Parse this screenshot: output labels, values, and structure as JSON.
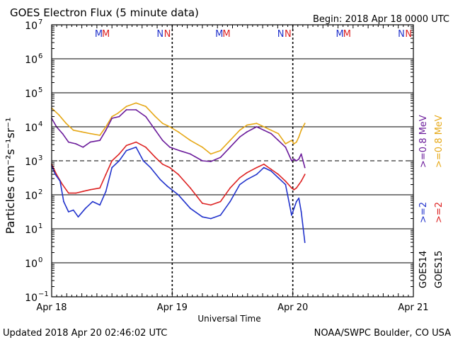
{
  "chart_data": {
    "type": "line",
    "title": "GOES Electron Flux (5 minute data)",
    "begin_label": "Begin: 2018 Apr 18 0000 UTC",
    "xlabel": "Universal Time",
    "ylabel": "Particles cm⁻²s⁻¹sr⁻¹",
    "footer_left": "Updated 2018 Apr 20 02:46:02 UTC",
    "footer_right": "NOAA/SWPC Boulder, CO USA",
    "x_unit": "days since 2018 Apr 18 0000 UTC",
    "xlim": [
      0,
      3
    ],
    "x_ticks": [
      {
        "x": 0,
        "label": "Apr 18"
      },
      {
        "x": 1,
        "label": "Apr 19"
      },
      {
        "x": 2,
        "label": "Apr 20"
      },
      {
        "x": 3,
        "label": "Apr 21"
      }
    ],
    "y_scale": "log",
    "ylim_exponent": [
      -1,
      7
    ],
    "y_ticks": [
      {
        "exp": 7,
        "base": "10",
        "sup": "7"
      },
      {
        "exp": 6,
        "base": "10",
        "sup": "6"
      },
      {
        "exp": 5,
        "base": "10",
        "sup": "5"
      },
      {
        "exp": 4,
        "base": "10",
        "sup": "4"
      },
      {
        "exp": 3,
        "base": "10",
        "sup": "3"
      },
      {
        "exp": 2,
        "base": "10",
        "sup": "2"
      },
      {
        "exp": 1,
        "base": "10",
        "sup": "1"
      },
      {
        "exp": 0,
        "base": "10",
        "sup": "0"
      },
      {
        "exp": -1,
        "base": "10",
        "sup": "-1"
      }
    ],
    "threshold_exponent": 3,
    "day_separators": [
      1,
      2
    ],
    "markers": [
      {
        "x": 0.39,
        "text": "M",
        "color": "#2233cc"
      },
      {
        "x": 0.45,
        "text": "M",
        "color": "#dd2222"
      },
      {
        "x": 0.9,
        "text": "N",
        "color": "#2233cc"
      },
      {
        "x": 0.96,
        "text": "N",
        "color": "#dd2222"
      },
      {
        "x": 1.39,
        "text": "M",
        "color": "#2233cc"
      },
      {
        "x": 1.45,
        "text": "M",
        "color": "#dd2222"
      },
      {
        "x": 1.9,
        "text": "N",
        "color": "#2233cc"
      },
      {
        "x": 1.96,
        "text": "N",
        "color": "#dd2222"
      },
      {
        "x": 2.39,
        "text": "M",
        "color": "#2233cc"
      },
      {
        "x": 2.45,
        "text": "M",
        "color": "#dd2222"
      },
      {
        "x": 2.9,
        "text": "N",
        "color": "#2233cc"
      },
      {
        "x": 2.96,
        "text": "N",
        "color": "#dd2222"
      }
    ],
    "legend": [
      {
        "group": "GOES14",
        "items": [
          {
            "label": ">=2",
            "color": "#2233cc"
          },
          {
            "label": ">=0.8 MeV",
            "color": "#6a1a9a"
          }
        ]
      },
      {
        "group": "GOES15",
        "items": [
          {
            "label": ">=2",
            "color": "#dd2222"
          },
          {
            "label": ">=0.8 MeV",
            "color": "#e6a817"
          }
        ]
      }
    ],
    "series": [
      {
        "name": "GOES15 >=0.8 MeV",
        "color": "#e6a817",
        "x": [
          0,
          0.06,
          0.12,
          0.18,
          0.25,
          0.32,
          0.4,
          0.45,
          0.5,
          0.55,
          0.62,
          0.7,
          0.78,
          0.86,
          0.92,
          0.98,
          1.05,
          1.15,
          1.25,
          1.32,
          1.4,
          1.48,
          1.56,
          1.62,
          1.7,
          1.76,
          1.82,
          1.88,
          1.94,
          1.99,
          2.01,
          2.03,
          2.05,
          2.07,
          2.1
        ],
        "exp": [
          4.55,
          4.35,
          4.1,
          3.9,
          3.85,
          3.8,
          3.75,
          4.0,
          4.3,
          4.4,
          4.6,
          4.7,
          4.6,
          4.3,
          4.1,
          4.0,
          3.85,
          3.6,
          3.4,
          3.2,
          3.3,
          3.6,
          3.9,
          4.05,
          4.1,
          4.0,
          3.9,
          3.8,
          3.5,
          3.6,
          3.5,
          3.55,
          3.7,
          3.9,
          4.1
        ]
      },
      {
        "name": "GOES14 >=0.8 MeV",
        "color": "#6a1a9a",
        "x": [
          0,
          0.04,
          0.09,
          0.14,
          0.2,
          0.26,
          0.32,
          0.4,
          0.45,
          0.5,
          0.56,
          0.62,
          0.7,
          0.78,
          0.86,
          0.92,
          0.98,
          1.06,
          1.15,
          1.25,
          1.32,
          1.4,
          1.48,
          1.56,
          1.62,
          1.7,
          1.76,
          1.82,
          1.88,
          1.94,
          1.99,
          2.01,
          2.03,
          2.05,
          2.07,
          2.1
        ],
        "exp": [
          4.25,
          4.0,
          3.8,
          3.55,
          3.5,
          3.4,
          3.55,
          3.6,
          3.9,
          4.25,
          4.3,
          4.5,
          4.5,
          4.3,
          3.9,
          3.6,
          3.4,
          3.3,
          3.2,
          3.0,
          2.98,
          3.1,
          3.4,
          3.7,
          3.85,
          4.0,
          3.9,
          3.8,
          3.6,
          3.4,
          3.0,
          3.05,
          3.0,
          3.05,
          3.2,
          2.8
        ]
      },
      {
        "name": "GOES15 >=2 MeV",
        "color": "#dd2222",
        "x": [
          0,
          0.04,
          0.09,
          0.14,
          0.2,
          0.26,
          0.32,
          0.4,
          0.45,
          0.5,
          0.56,
          0.62,
          0.7,
          0.78,
          0.86,
          0.92,
          0.98,
          1.05,
          1.15,
          1.25,
          1.32,
          1.4,
          1.48,
          1.56,
          1.62,
          1.7,
          1.76,
          1.82,
          1.88,
          1.94,
          1.99,
          2.01,
          2.03,
          2.05,
          2.07,
          2.1
        ],
        "exp": [
          2.9,
          2.6,
          2.3,
          2.05,
          2.05,
          2.1,
          2.15,
          2.2,
          2.6,
          3.0,
          3.2,
          3.45,
          3.55,
          3.4,
          3.1,
          2.9,
          2.8,
          2.6,
          2.2,
          1.75,
          1.7,
          1.8,
          2.2,
          2.5,
          2.65,
          2.8,
          2.9,
          2.75,
          2.6,
          2.4,
          2.2,
          2.15,
          2.2,
          2.3,
          2.4,
          2.6
        ]
      },
      {
        "name": "GOES14 >=2 MeV",
        "color": "#2233cc",
        "x": [
          0,
          0.03,
          0.07,
          0.1,
          0.14,
          0.18,
          0.22,
          0.28,
          0.34,
          0.4,
          0.45,
          0.5,
          0.56,
          0.62,
          0.7,
          0.76,
          0.82,
          0.9,
          0.96,
          1.05,
          1.15,
          1.25,
          1.32,
          1.4,
          1.48,
          1.56,
          1.62,
          1.7,
          1.76,
          1.82,
          1.88,
          1.94,
          1.99,
          2.01,
          2.03,
          2.05,
          2.07,
          2.1
        ],
        "exp": [
          2.85,
          2.6,
          2.4,
          1.8,
          1.5,
          1.55,
          1.35,
          1.6,
          1.8,
          1.7,
          2.1,
          2.8,
          3.0,
          3.3,
          3.4,
          3.0,
          2.8,
          2.45,
          2.25,
          2.0,
          1.6,
          1.35,
          1.3,
          1.4,
          1.8,
          2.3,
          2.45,
          2.6,
          2.8,
          2.7,
          2.5,
          2.3,
          1.4,
          1.6,
          1.8,
          1.9,
          1.5,
          0.6
        ]
      }
    ]
  }
}
